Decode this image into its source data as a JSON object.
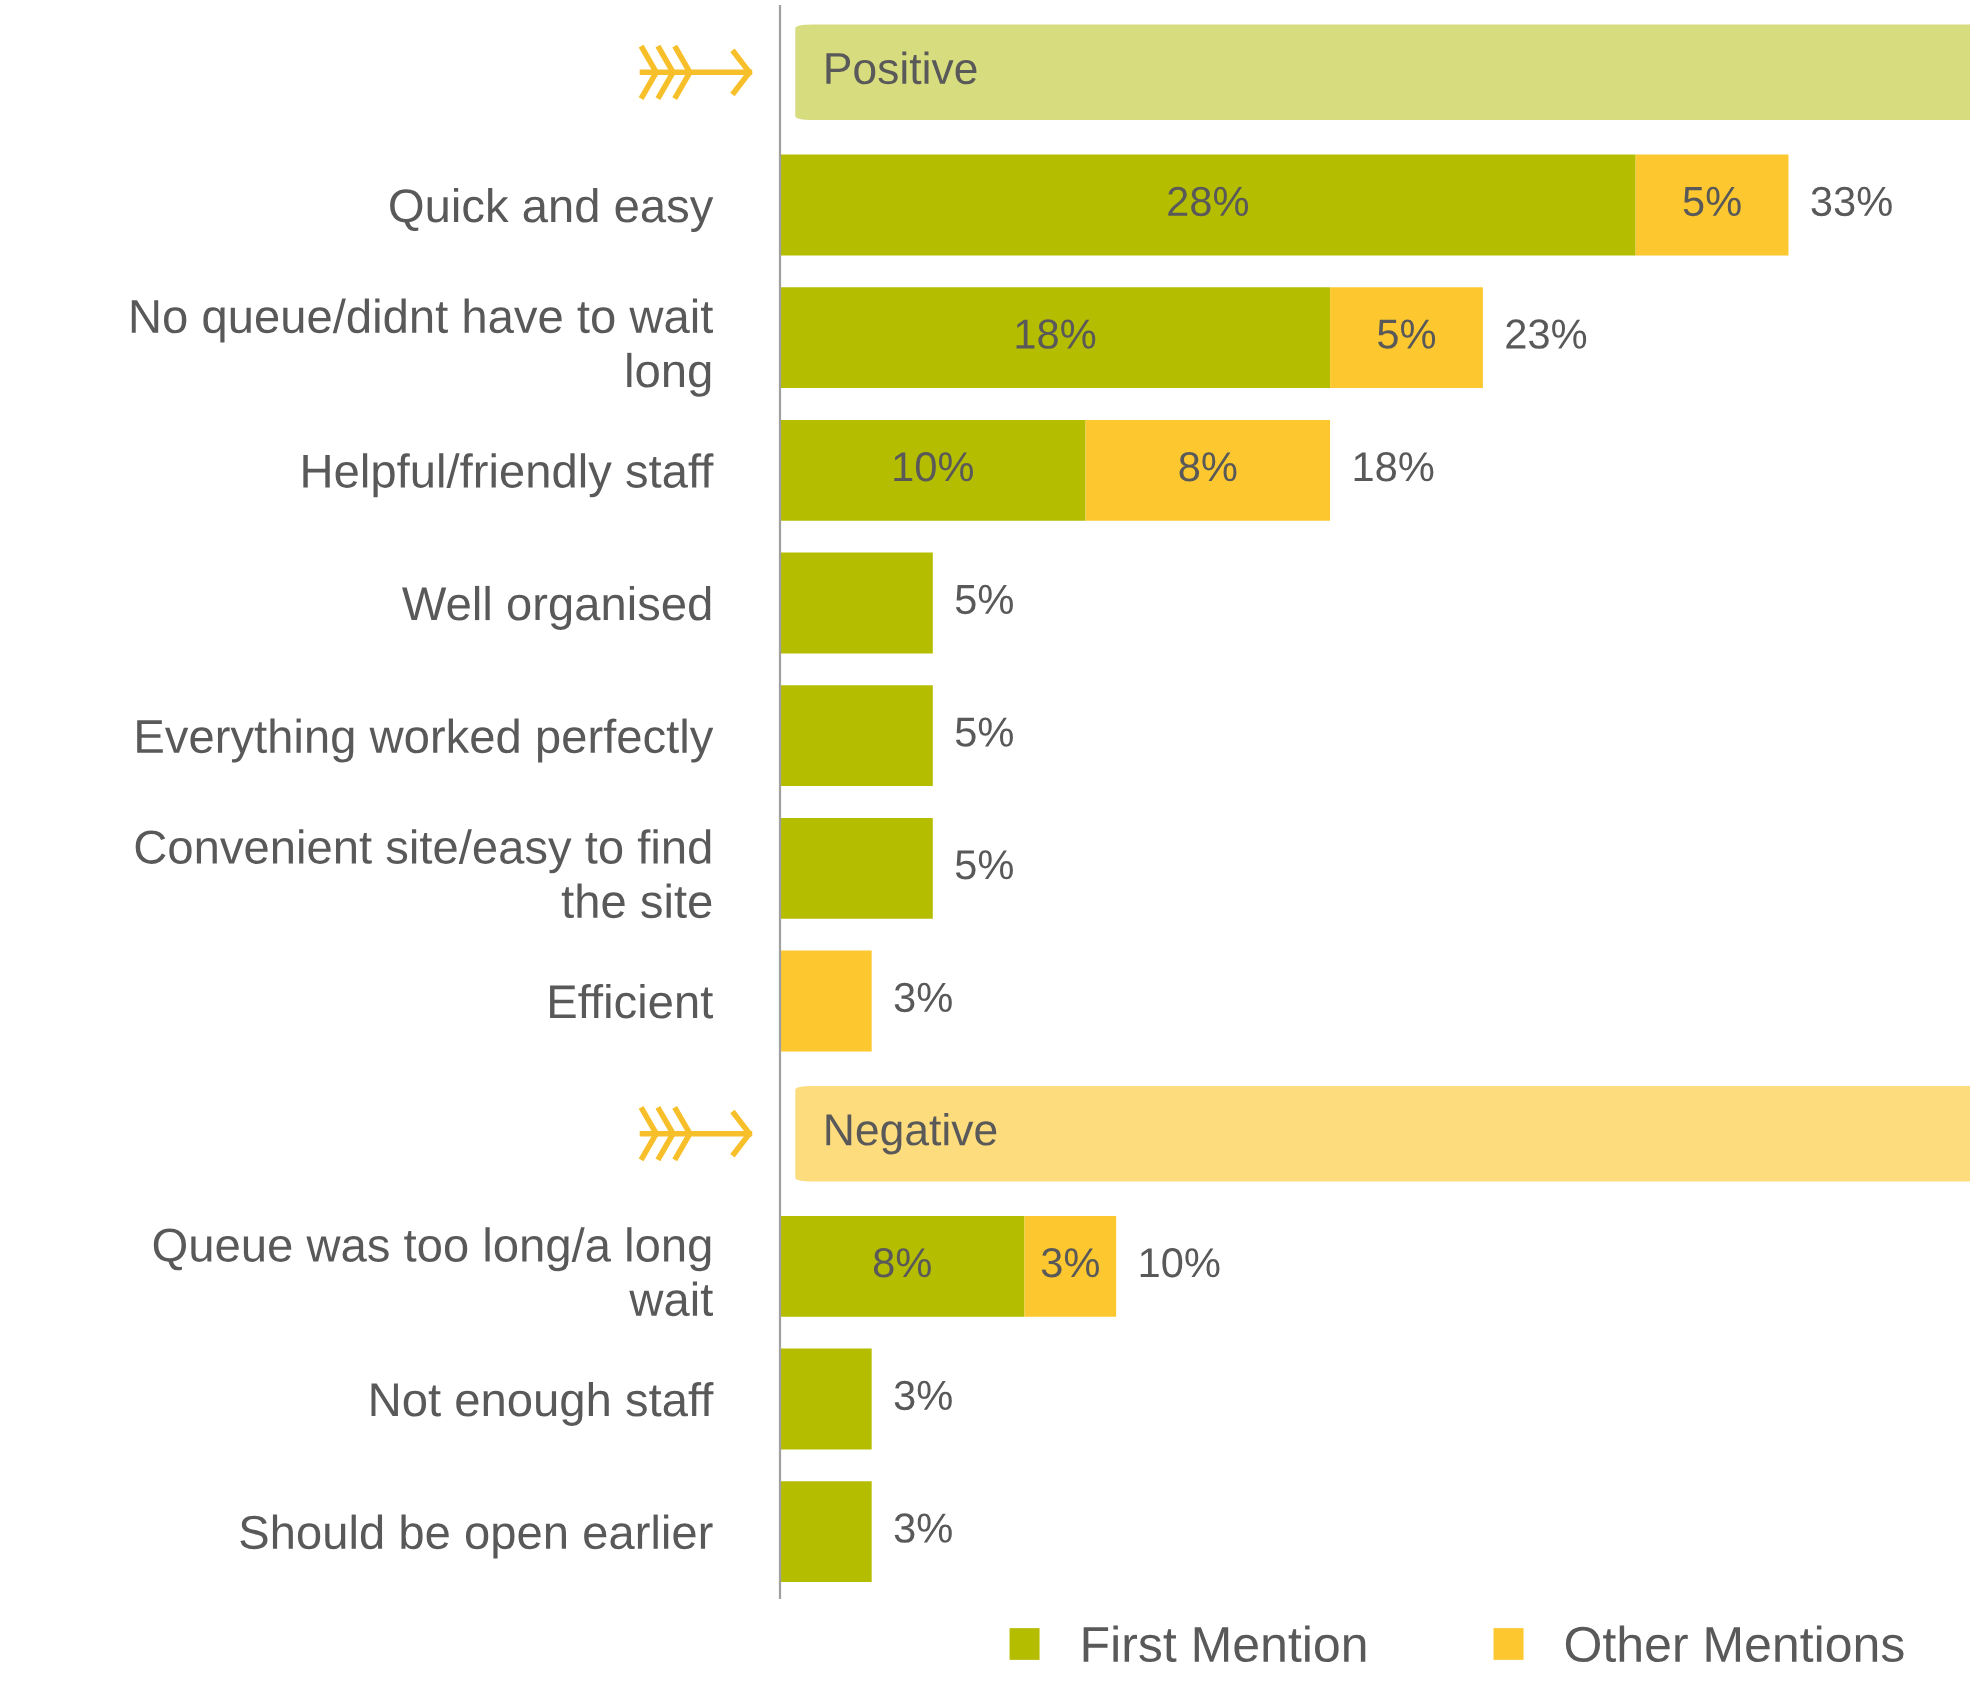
{
  "chart_data": {
    "type": "bar",
    "orientation": "horizontal",
    "stacked": true,
    "categories": [
      null,
      "Quick and easy",
      "No queue/didnt have to wait\nlong",
      "Helpful/friendly staff",
      "Well organised",
      "Everything worked perfectly",
      "Convenient site/easy to find\nthe site",
      "Efficient",
      null,
      "Queue was too long/a long\nwait",
      "Not enough staff",
      "Should be open earlier"
    ],
    "series": [
      {
        "name": "First Mention",
        "color": "#b5bd00",
        "values": [
          null,
          28,
          18,
          10,
          5,
          5,
          5,
          null,
          null,
          8,
          3,
          3
        ],
        "value_labels": [
          null,
          "28%",
          "18%",
          "10%",
          null,
          null,
          null,
          null,
          null,
          "8%",
          null,
          null
        ]
      },
      {
        "name": "Other Mentions",
        "color": "#fdc82f",
        "values": [
          null,
          5,
          5,
          8,
          null,
          null,
          null,
          3,
          null,
          3,
          null,
          null
        ],
        "value_labels": [
          null,
          "5%",
          "5%",
          "8%",
          null,
          null,
          null,
          null,
          null,
          "3%",
          null,
          null
        ]
      }
    ],
    "totals": [
      null,
      "33%",
      "23%",
      "18%",
      "5%",
      "5%",
      "5%",
      "3%",
      null,
      "10%",
      "3%",
      "3%"
    ],
    "annotations": [
      "Positive",
      "Negative"
    ],
    "tick_labels": "y",
    "grid": false,
    "legend": "bottom right"
  }
}
